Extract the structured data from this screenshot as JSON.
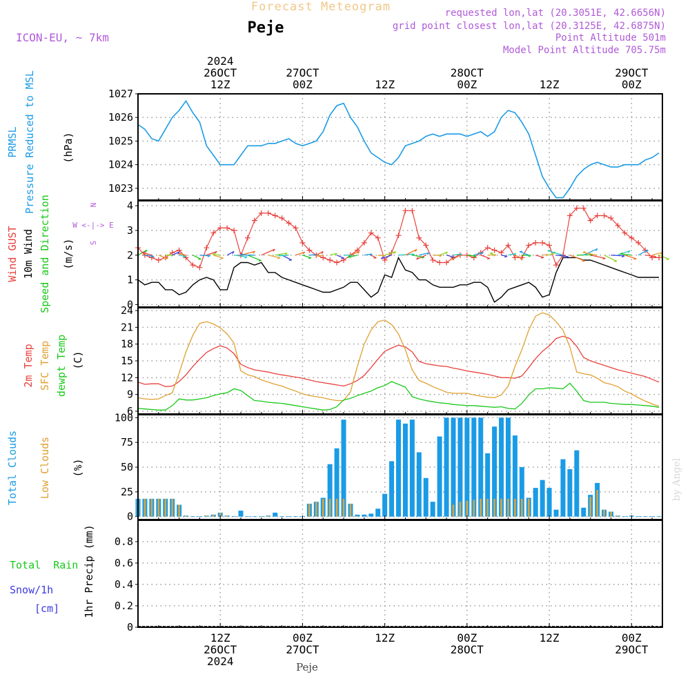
{
  "header": {
    "title": "Forecast Meteogram",
    "location": "Peje",
    "model": "ICON-EU, ~ 7km",
    "requested": "requested lon,lat (20.3051E, 42.6656N)",
    "grid_point": "grid point closest lon,lat (20.3125E, 42.6875N)",
    "point_altitude": "Point Altitude 501m",
    "model_altitude": "Model Point Altitude 705.75m",
    "footer_location": "Peje",
    "watermark": "by Angel"
  },
  "time_axis": {
    "top_labels": [
      {
        "t": 12,
        "lines": [
          "2024",
          "26OCT",
          "12Z"
        ]
      },
      {
        "t": 24,
        "lines": [
          "27OCT",
          "00Z"
        ]
      },
      {
        "t": 36,
        "lines": [
          "12Z"
        ]
      },
      {
        "t": 48,
        "lines": [
          "28OCT",
          "00Z"
        ]
      },
      {
        "t": 60,
        "lines": [
          "12Z"
        ]
      },
      {
        "t": 72,
        "lines": [
          "29OCT",
          "00Z"
        ]
      }
    ],
    "bottom_labels": [
      {
        "t": 12,
        "lines": [
          "12Z",
          "26OCT",
          "2024"
        ]
      },
      {
        "t": 24,
        "lines": [
          "00Z",
          "27OCT"
        ]
      },
      {
        "t": 36,
        "lines": [
          "12Z"
        ]
      },
      {
        "t": 48,
        "lines": [
          "00Z",
          "28OCT"
        ]
      },
      {
        "t": 60,
        "lines": [
          "12Z"
        ]
      },
      {
        "t": 72,
        "lines": [
          "00Z",
          "29OCT"
        ]
      }
    ]
  },
  "legends": {
    "pressure": {
      "name1": "PRMSL",
      "name2": "Pressure Reduced to MSL",
      "unit": "(hPa)"
    },
    "wind": {
      "gust": "Wind GUST",
      "wind10": "10m Wind",
      "dir": "Speed and Direction",
      "unit": "(m/s)",
      "compass": "W <-|-> E",
      "compass_n": "N",
      "compass_s": "S"
    },
    "temp": {
      "t2m": "2m Temp",
      "sfc": "SFC Temp",
      "dewpt": "dewpt Temp",
      "unit": "(C)"
    },
    "clouds": {
      "total": "Total Clouds",
      "low": "Low Clouds",
      "unit": "(%)"
    },
    "precip": {
      "rain": "Total  Rain",
      "snow": "Snow/1h",
      "snow_unit": "[cm]",
      "ylabel": "1hr Precip (mm)"
    }
  },
  "colors": {
    "pressure": "#1a9be6",
    "gust": "#e8413c",
    "wind": "#000000",
    "t2m": "#e8413c",
    "sfc": "#e0a030",
    "dewpt": "#18c818",
    "total_clouds": "#1a9be6",
    "low_clouds": "#d9a640",
    "rain": "#18c818",
    "snow": "#3a3ae0",
    "title": "#f0c888",
    "info": "#b05ad8"
  },
  "chart_data": [
    {
      "type": "line",
      "title": "PRMSL Pressure Reduced to MSL",
      "ylabel": "(hPa)",
      "ylim": [
        1022.5,
        1027
      ],
      "yticks": [
        1023,
        1024,
        1025,
        1026,
        1027
      ],
      "x": [
        0,
        1,
        2,
        3,
        4,
        5,
        6,
        7,
        8,
        9,
        10,
        11,
        12,
        13,
        14,
        15,
        16,
        17,
        18,
        19,
        20,
        21,
        22,
        23,
        24,
        25,
        26,
        27,
        28,
        29,
        30,
        31,
        32,
        33,
        34,
        35,
        36,
        37,
        38,
        39,
        40,
        41,
        42,
        43,
        44,
        45,
        46,
        47,
        48,
        49,
        50,
        51,
        52,
        53,
        54,
        55,
        56,
        57,
        58,
        59,
        60,
        61,
        62,
        63,
        64,
        65,
        66,
        67,
        68,
        69,
        70,
        71,
        72,
        73,
        74,
        75,
        76
      ],
      "series": [
        {
          "name": "PRMSL",
          "values": [
            1025.7,
            1025.5,
            1025.1,
            1025.0,
            1025.5,
            1026.0,
            1026.3,
            1026.7,
            1026.2,
            1025.8,
            1024.8,
            1024.4,
            1024.0,
            1024.0,
            1024.0,
            1024.4,
            1024.8,
            1024.8,
            1024.8,
            1024.9,
            1024.9,
            1025.0,
            1025.1,
            1024.9,
            1024.8,
            1024.9,
            1025.0,
            1025.4,
            1026.1,
            1026.5,
            1026.6,
            1026.0,
            1025.6,
            1025.0,
            1024.5,
            1024.3,
            1024.1,
            1024.0,
            1024.3,
            1024.8,
            1024.9,
            1025.0,
            1025.2,
            1025.3,
            1025.2,
            1025.3,
            1025.3,
            1025.3,
            1025.2,
            1025.3,
            1025.4,
            1025.2,
            1025.4,
            1026.0,
            1026.3,
            1026.2,
            1025.8,
            1025.3,
            1024.4,
            1023.5,
            1023.0,
            1022.6,
            1022.6,
            1023.0,
            1023.5,
            1023.8,
            1024.0,
            1024.1,
            1024.0,
            1023.9,
            1023.9,
            1024.0,
            1024.0,
            1024.0,
            1024.2,
            1024.3,
            1024.5
          ]
        }
      ]
    },
    {
      "type": "line",
      "title": "Wind GUST / 10m Wind Speed and Direction",
      "ylabel": "(m/s)",
      "ylim": [
        -0.1,
        4.2
      ],
      "yticks": [
        0,
        1,
        2,
        3,
        4
      ],
      "x": [
        0,
        1,
        2,
        3,
        4,
        5,
        6,
        7,
        8,
        9,
        10,
        11,
        12,
        13,
        14,
        15,
        16,
        17,
        18,
        19,
        20,
        21,
        22,
        23,
        24,
        25,
        26,
        27,
        28,
        29,
        30,
        31,
        32,
        33,
        34,
        35,
        36,
        37,
        38,
        39,
        40,
        41,
        42,
        43,
        44,
        45,
        46,
        47,
        48,
        49,
        50,
        51,
        52,
        53,
        54,
        55,
        56,
        57,
        58,
        59,
        60,
        61,
        62,
        63,
        64,
        65,
        66,
        67,
        68,
        69,
        70,
        71,
        72,
        73,
        74,
        75,
        76
      ],
      "series": [
        {
          "name": "Wind GUST",
          "values": [
            2.3,
            2.0,
            1.9,
            1.8,
            1.9,
            2.1,
            2.2,
            1.9,
            1.6,
            1.5,
            2.3,
            2.9,
            3.1,
            3.1,
            3.0,
            2.0,
            2.7,
            3.4,
            3.7,
            3.7,
            3.6,
            3.5,
            3.3,
            3.1,
            2.5,
            2.2,
            2.0,
            1.9,
            1.8,
            1.7,
            1.8,
            2.0,
            2.2,
            2.5,
            2.9,
            2.7,
            1.8,
            2.1,
            2.8,
            3.8,
            3.8,
            2.7,
            2.4,
            1.8,
            1.7,
            1.7,
            1.9,
            2.0,
            2.0,
            1.9,
            2.1,
            2.3,
            2.2,
            2.1,
            2.4,
            1.9,
            1.9,
            2.4,
            2.5,
            2.5,
            2.4,
            1.6,
            2.0,
            3.6,
            3.9,
            3.9,
            3.4,
            3.6,
            3.6,
            3.5,
            3.2,
            2.9,
            2.7,
            2.5,
            2.2,
            1.9,
            1.9
          ]
        },
        {
          "name": "10m Wind",
          "values": [
            1.0,
            0.8,
            0.9,
            0.9,
            0.6,
            0.6,
            0.4,
            0.5,
            0.8,
            1.0,
            1.1,
            1.0,
            0.6,
            0.6,
            1.5,
            1.7,
            1.7,
            1.6,
            1.7,
            1.3,
            1.3,
            1.1,
            1.0,
            0.9,
            0.8,
            0.7,
            0.6,
            0.5,
            0.5,
            0.6,
            0.7,
            0.9,
            0.9,
            0.6,
            0.3,
            0.5,
            1.2,
            1.1,
            1.9,
            1.4,
            1.3,
            1.0,
            1.0,
            0.8,
            0.7,
            0.7,
            0.7,
            0.8,
            0.8,
            0.9,
            0.9,
            0.7,
            0.1,
            0.3,
            0.6,
            0.7,
            0.8,
            0.9,
            0.7,
            0.3,
            0.4,
            1.3,
            1.9,
            1.9,
            1.9,
            1.8,
            1.8,
            1.7,
            1.6,
            1.5,
            1.4,
            1.3,
            1.2,
            1.1,
            1.1,
            1.1,
            1.1
          ]
        }
      ]
    },
    {
      "type": "line",
      "title": "2m Temp / SFC Temp / dewpt Temp",
      "ylabel": "(C)",
      "ylim": [
        5.5,
        24.5
      ],
      "yticks": [
        6,
        9,
        12,
        15,
        18,
        21,
        24
      ],
      "x": [
        0,
        1,
        2,
        3,
        4,
        5,
        6,
        7,
        8,
        9,
        10,
        11,
        12,
        13,
        14,
        15,
        16,
        17,
        18,
        19,
        20,
        21,
        22,
        23,
        24,
        25,
        26,
        27,
        28,
        29,
        30,
        31,
        32,
        33,
        34,
        35,
        36,
        37,
        38,
        39,
        40,
        41,
        42,
        43,
        44,
        45,
        46,
        47,
        48,
        49,
        50,
        51,
        52,
        53,
        54,
        55,
        56,
        57,
        58,
        59,
        60,
        61,
        62,
        63,
        64,
        65,
        66,
        67,
        68,
        69,
        70,
        71,
        72,
        73,
        74,
        75,
        76
      ],
      "series": [
        {
          "name": "2m Temp",
          "values": [
            11.2,
            10.8,
            10.9,
            10.9,
            10.4,
            10.5,
            11.3,
            12.5,
            14.0,
            15.3,
            16.5,
            17.2,
            17.7,
            17.3,
            16.3,
            14.4,
            13.8,
            13.4,
            13.2,
            13.0,
            12.7,
            12.5,
            12.3,
            12.1,
            11.9,
            11.6,
            11.3,
            11.1,
            10.9,
            10.7,
            10.5,
            10.9,
            11.5,
            12.4,
            13.8,
            15.3,
            16.7,
            17.3,
            17.8,
            17.5,
            16.6,
            14.9,
            14.5,
            14.3,
            14.1,
            14.0,
            13.7,
            13.5,
            13.2,
            13.0,
            12.8,
            12.6,
            12.3,
            12.0,
            12.0,
            11.9,
            12.3,
            13.8,
            15.4,
            16.7,
            17.7,
            19.0,
            19.4,
            19.0,
            17.6,
            15.6,
            15.0,
            14.6,
            14.2,
            13.8,
            13.4,
            13.1,
            12.8,
            12.5,
            12.2,
            11.7,
            11.2
          ]
        },
        {
          "name": "SFC Temp",
          "values": [
            8.4,
            8.2,
            8.1,
            8.2,
            8.8,
            9.3,
            12.8,
            16.6,
            19.6,
            21.7,
            22.0,
            21.6,
            20.9,
            19.8,
            18.2,
            13.2,
            12.5,
            12.2,
            11.6,
            11.2,
            10.8,
            10.5,
            10.0,
            9.6,
            9.1,
            8.8,
            8.6,
            8.4,
            8.1,
            7.9,
            7.9,
            9.5,
            14.0,
            18.0,
            20.5,
            22.0,
            22.3,
            21.5,
            19.8,
            17.0,
            13.4,
            11.5,
            11.0,
            10.4,
            9.9,
            9.4,
            9.2,
            9.2,
            9.2,
            8.9,
            8.7,
            8.5,
            8.4,
            8.9,
            10.5,
            14.0,
            17.0,
            20.5,
            23.0,
            23.6,
            23.2,
            22.0,
            20.5,
            17.5,
            13.0,
            12.7,
            12.5,
            11.9,
            11.1,
            10.8,
            10.4,
            9.6,
            9.1,
            8.4,
            7.8,
            7.3,
            6.9
          ]
        },
        {
          "name": "dewpt Temp",
          "values": [
            6.5,
            6.4,
            6.3,
            6.2,
            6.2,
            7.0,
            8.2,
            8.0,
            8.0,
            8.2,
            8.4,
            8.8,
            9.1,
            9.3,
            10.0,
            9.7,
            8.8,
            7.9,
            7.8,
            7.6,
            7.5,
            7.4,
            7.2,
            7.0,
            6.8,
            6.6,
            6.4,
            6.2,
            6.3,
            6.8,
            8.0,
            8.3,
            8.8,
            9.2,
            9.6,
            10.2,
            10.6,
            11.3,
            10.8,
            10.3,
            8.6,
            8.2,
            7.9,
            7.7,
            7.5,
            7.4,
            7.2,
            7.1,
            7.0,
            7.0,
            6.9,
            6.8,
            6.7,
            6.8,
            6.5,
            6.4,
            7.4,
            8.9,
            10.0,
            10.0,
            10.2,
            10.1,
            10.0,
            11.0,
            9.6,
            7.9,
            7.6,
            7.6,
            7.6,
            7.4,
            7.3,
            7.2,
            7.2,
            7.1,
            7.0,
            6.9,
            6.7
          ]
        }
      ]
    },
    {
      "type": "bar",
      "title": "Total Clouds / Low Clouds",
      "ylabel": "(%)",
      "ylim": [
        -3,
        103
      ],
      "yticks": [
        0,
        25,
        50,
        75,
        100
      ],
      "x": [
        0,
        1,
        2,
        3,
        4,
        5,
        6,
        7,
        8,
        9,
        10,
        11,
        12,
        13,
        14,
        15,
        16,
        17,
        18,
        19,
        20,
        21,
        22,
        23,
        24,
        25,
        26,
        27,
        28,
        29,
        30,
        31,
        32,
        33,
        34,
        35,
        36,
        37,
        38,
        39,
        40,
        41,
        42,
        43,
        44,
        45,
        46,
        47,
        48,
        49,
        50,
        51,
        52,
        53,
        54,
        55,
        56,
        57,
        58,
        59,
        60,
        61,
        62,
        63,
        64,
        65,
        66,
        67,
        68,
        69,
        70,
        71,
        72,
        73,
        74,
        75,
        76
      ],
      "series": [
        {
          "name": "Total Clouds",
          "values": [
            18,
            18,
            18,
            18,
            18,
            18,
            12,
            1,
            0,
            0,
            1,
            2,
            4,
            1,
            0,
            6,
            0,
            0,
            0,
            1,
            4,
            0,
            0,
            0,
            0,
            13,
            15,
            19,
            53,
            69,
            98,
            13,
            2,
            2,
            3,
            8,
            23,
            56,
            98,
            94,
            98,
            65,
            39,
            15,
            81,
            100,
            100,
            100,
            100,
            100,
            100,
            64,
            91,
            100,
            100,
            82,
            50,
            19,
            29,
            37,
            29,
            7,
            58,
            48,
            67,
            9,
            22,
            34,
            7,
            5,
            1,
            0,
            1,
            0,
            0,
            0,
            0
          ]
        },
        {
          "name": "Low Clouds",
          "values": [
            18,
            18,
            18,
            18,
            18,
            18,
            12,
            1,
            0,
            0,
            1,
            2,
            4,
            1,
            0,
            0,
            0,
            0,
            0,
            1,
            0,
            0,
            0,
            0,
            0,
            13,
            15,
            18,
            18,
            18,
            18,
            13,
            1,
            0,
            0,
            0,
            0,
            0,
            0,
            0,
            0,
            0,
            0,
            0,
            0,
            0,
            12,
            15,
            16,
            17,
            18,
            18,
            18,
            18,
            18,
            18,
            18,
            18,
            0,
            0,
            0,
            0,
            0,
            0,
            0,
            0,
            20,
            27,
            7,
            5,
            1,
            0,
            0,
            0,
            0,
            0,
            0
          ]
        }
      ]
    },
    {
      "type": "bar",
      "title": "1hr Precip",
      "ylabel": "1hr Precip (mm)",
      "ylim": [
        0,
        1
      ],
      "yticks": [
        0,
        0.2,
        0.4,
        0.6,
        0.8
      ],
      "series": [
        {
          "name": "Total Rain",
          "values": []
        },
        {
          "name": "Snow/1h",
          "values": []
        }
      ]
    }
  ]
}
